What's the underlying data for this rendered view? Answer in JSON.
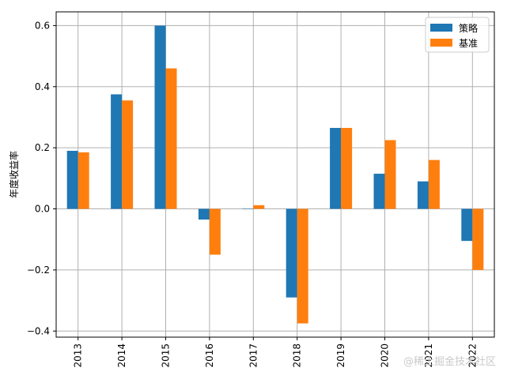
{
  "chart_data": {
    "type": "bar",
    "categories": [
      "2013",
      "2014",
      "2015",
      "2016",
      "2017",
      "2018",
      "2019",
      "2020",
      "2021",
      "2022"
    ],
    "series": [
      {
        "name": "策略",
        "color": "#1f77b4",
        "values": [
          0.19,
          0.375,
          0.6,
          -0.035,
          0.0,
          -0.29,
          0.265,
          0.115,
          0.09,
          -0.105
        ]
      },
      {
        "name": "基准",
        "color": "#ff7f0e",
        "values": [
          0.185,
          0.355,
          0.46,
          -0.15,
          0.012,
          -0.375,
          0.265,
          0.225,
          0.16,
          -0.2
        ]
      }
    ],
    "ylabel": "年度收益率",
    "ylim": [
      -0.42,
      0.645
    ],
    "yticks": [
      -0.4,
      -0.2,
      0.0,
      0.2,
      0.4,
      0.6
    ],
    "ytick_labels": [
      "−0.4",
      "−0.2",
      "0.0",
      "0.2",
      "0.4",
      "0.6"
    ],
    "grid": true,
    "legend_position": "top-right"
  },
  "watermark": "@稀土掘金技术社区"
}
